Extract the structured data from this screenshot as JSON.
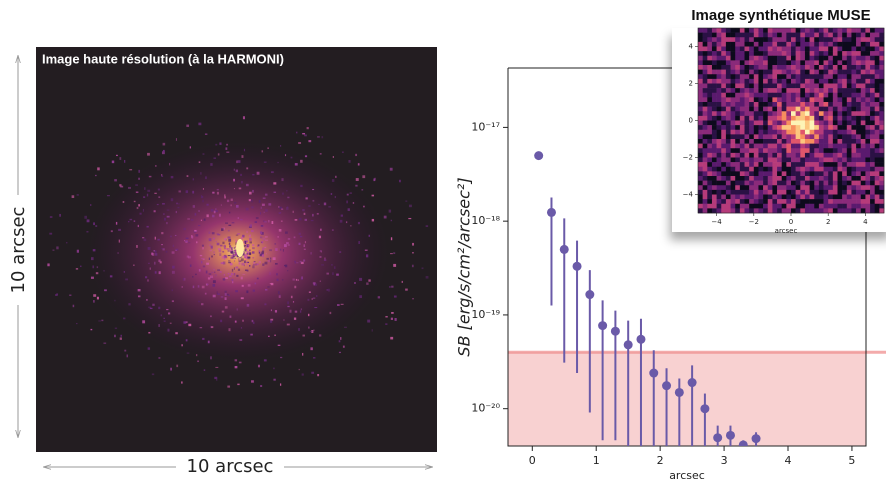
{
  "image_panel": {
    "title": "Image haute résolution (à la HARMONI)",
    "x_label": "10 arcsec",
    "y_label": "10 arcsec"
  },
  "chart_data": {
    "type": "scatter",
    "xlabel": "arcsec",
    "ylabel": "SB [erg/s/cm²/arcsec²]",
    "x": [
      0.1,
      0.3,
      0.5,
      0.7,
      0.9,
      1.1,
      1.3,
      1.5,
      1.7,
      1.9,
      2.1,
      2.3,
      2.5,
      2.7,
      2.9,
      3.1,
      3.3,
      3.5
    ],
    "values": [
      5e-18,
      1.24e-18,
      5e-19,
      3.3e-19,
      1.65e-19,
      7.7e-20,
      6.7e-20,
      4.8e-20,
      5.5e-20,
      2.4e-20,
      1.76e-20,
      1.49e-20,
      1.9e-20,
      1e-20,
      4.9e-21,
      5.2e-21,
      4.1e-21,
      4.8e-21
    ],
    "err_lower": [
      null,
      1.26e-19,
      3.1e-20,
      2.4e-20,
      9.1e-21,
      4.6e-21,
      4.6e-21,
      4e-21,
      4e-21,
      4e-21,
      4e-21,
      4e-21,
      4e-21,
      4e-21,
      4e-21,
      4e-21,
      4e-21,
      4e-21
    ],
    "err_upper": [
      null,
      1.79e-18,
      1.07e-18,
      6.2e-19,
      3e-19,
      1.43e-19,
      1.11e-19,
      8.7e-20,
      9.1e-20,
      4.2e-20,
      2.7e-20,
      2.1e-20,
      2.9e-20,
      1.45e-20,
      6.6e-21,
      6.6e-21,
      4.6e-21,
      5.6e-21
    ],
    "color": "#6a5aa8",
    "shade_below": 4e-20,
    "shade_color": "#f4b8b8",
    "log_y": true,
    "xlim": [
      -0.38,
      5.22
    ],
    "ylim": [
      4e-21,
      4.3e-17
    ],
    "xticks": [
      0,
      1,
      2,
      3,
      4,
      5
    ],
    "yticks": [
      {
        "value": 1e-20,
        "label": "10⁻²⁰"
      },
      {
        "value": 1e-19,
        "label": "10⁻¹⁹"
      },
      {
        "value": 1e-18,
        "label": "10⁻¹⁸"
      },
      {
        "value": 1e-17,
        "label": "10⁻¹⁷"
      }
    ]
  },
  "inset": {
    "title": "Image synthétique MUSE",
    "xlabel": "arcsec",
    "xlim": [
      -5,
      5
    ],
    "ylim": [
      -5,
      5
    ],
    "xticks": [
      {
        "value": -4,
        "label": "−4"
      },
      {
        "value": -2,
        "label": "−2"
      },
      0,
      2,
      4
    ],
    "yticks": [
      {
        "value": -4,
        "label": "−4"
      },
      {
        "value": -2,
        "label": "−2"
      },
      0,
      2,
      4
    ]
  }
}
